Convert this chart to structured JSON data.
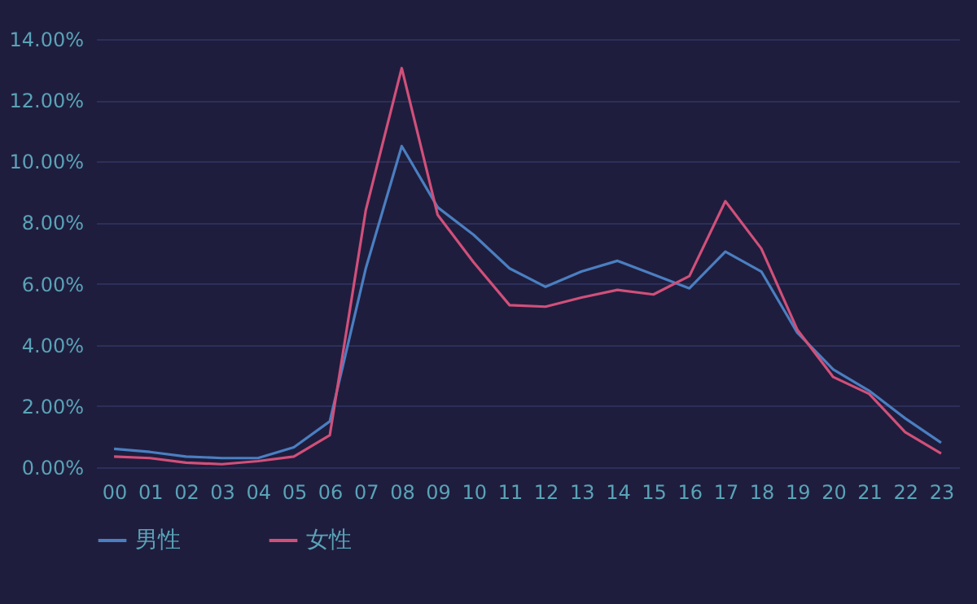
{
  "chart_data": {
    "type": "line",
    "categories": [
      "00",
      "01",
      "02",
      "03",
      "04",
      "05",
      "06",
      "07",
      "08",
      "09",
      "10",
      "11",
      "12",
      "13",
      "14",
      "15",
      "16",
      "17",
      "18",
      "19",
      "20",
      "21",
      "22",
      "23"
    ],
    "series": [
      {
        "name": "男性",
        "color": "#4a7fc1",
        "values": [
          0.6,
          0.5,
          0.35,
          0.3,
          0.3,
          0.65,
          1.5,
          6.5,
          10.5,
          8.5,
          7.6,
          6.5,
          5.9,
          6.4,
          6.75,
          6.3,
          5.85,
          7.05,
          6.4,
          4.4,
          3.2,
          2.5,
          1.6,
          0.8
        ]
      },
      {
        "name": "女性",
        "color": "#d0507a",
        "values": [
          0.35,
          0.3,
          0.15,
          0.1,
          0.2,
          0.35,
          1.05,
          8.4,
          13.05,
          8.25,
          6.7,
          5.3,
          5.25,
          5.55,
          5.8,
          5.65,
          6.25,
          8.7,
          7.15,
          4.5,
          2.95,
          2.4,
          1.15,
          0.45
        ]
      }
    ],
    "ylim": [
      0,
      14
    ],
    "yticks": [
      {
        "value": 0,
        "label": "0.00%"
      },
      {
        "value": 2,
        "label": "2.00%"
      },
      {
        "value": 4,
        "label": "4.00%"
      },
      {
        "value": 6,
        "label": "6.00%"
      },
      {
        "value": 8,
        "label": "8.00%"
      },
      {
        "value": 10,
        "label": "10.00%"
      },
      {
        "value": 12,
        "label": "12.00%"
      },
      {
        "value": 14,
        "label": "14.00%"
      }
    ],
    "grid": "y",
    "legend": "bottom",
    "marker": "none",
    "line_style": "solid"
  }
}
